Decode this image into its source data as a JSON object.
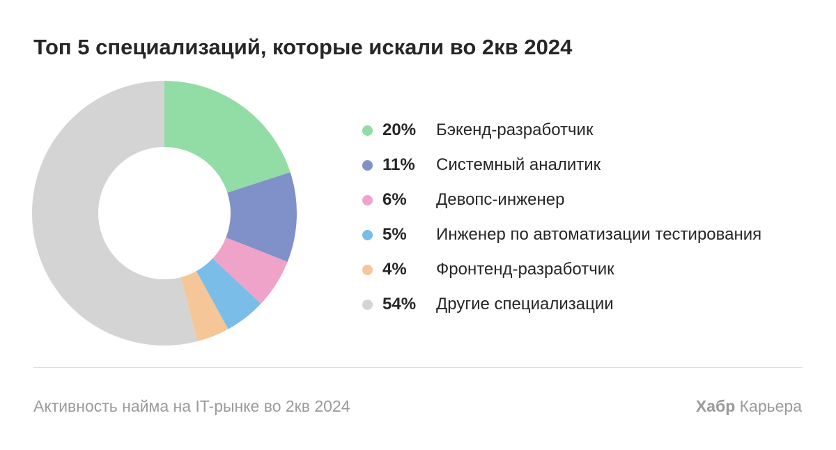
{
  "title": "Топ 5 специализаций, которые искали во 2кв 2024",
  "chart_data": {
    "type": "pie",
    "donut": true,
    "categories": [
      "Бэкенд-разработчик",
      "Системный аналитик",
      "Девопс-инженер",
      "Инженер по автоматизации тестирования",
      "Фронтенд-разработчик",
      "Другие специализации"
    ],
    "values": [
      20,
      11,
      6,
      5,
      4,
      54
    ],
    "value_labels": [
      "20%",
      "11%",
      "6%",
      "5%",
      "4%",
      "54%"
    ],
    "colors": [
      "#92dca6",
      "#8090c9",
      "#f0a3c9",
      "#7abde9",
      "#f5c697",
      "#d4d4d4"
    ],
    "legend_position": "right"
  },
  "footer": {
    "source": "Активность найма на IT-рынке во 2кв 2024",
    "brand_bold": "Хабр",
    "brand_rest": "Карьера"
  }
}
